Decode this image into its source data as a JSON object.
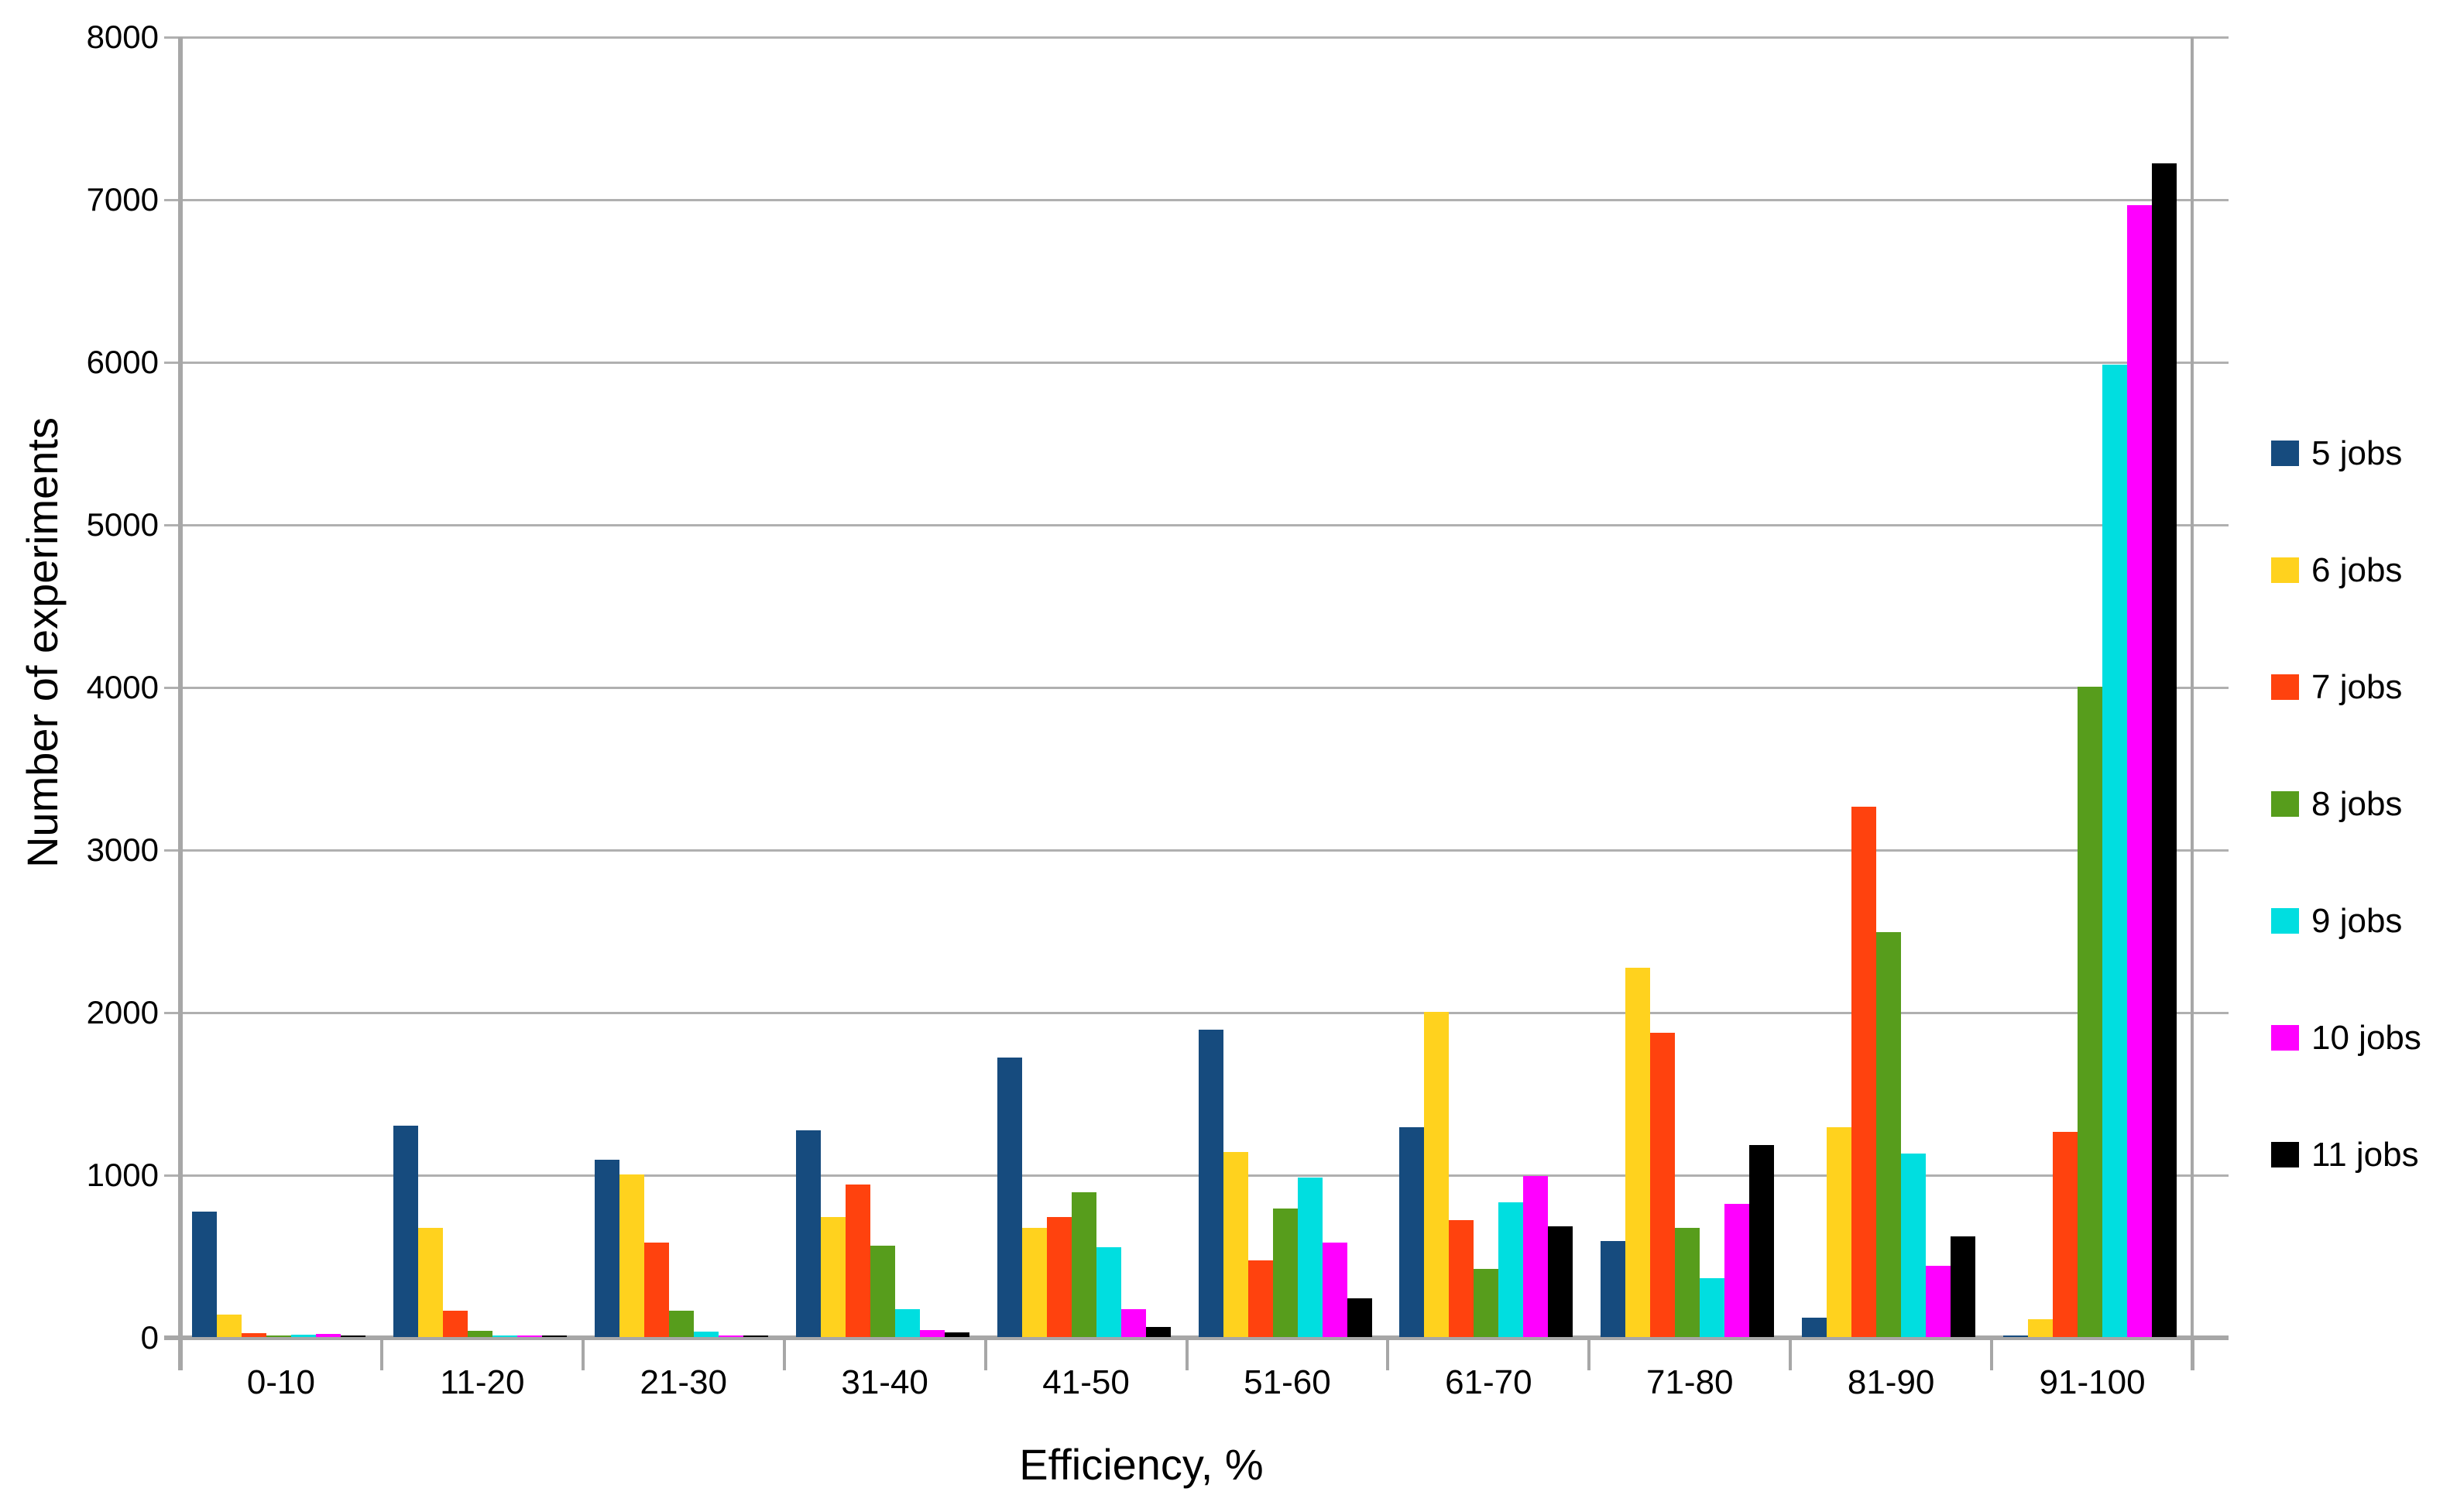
{
  "chart_data": {
    "type": "bar",
    "title": "",
    "xlabel": "Efficiency, %",
    "ylabel": "Number of experiments",
    "categories": [
      "0-10",
      "11-20",
      "21-30",
      "31-40",
      "41-50",
      "51-60",
      "61-70",
      "71-80",
      "81-90",
      "91-100"
    ],
    "yticks": [
      "0",
      "1000",
      "2000",
      "3000",
      "4000",
      "5000",
      "6000",
      "7000",
      "8000"
    ],
    "ylim": [
      0,
      8000
    ],
    "ytick_step": 1000,
    "grid": "horizontal",
    "legend_position": "right",
    "grid_color": "#b0b0b0",
    "axis_color": "#a7a7a7",
    "series": [
      {
        "name": "5 jobs",
        "color": "#164b7e",
        "values": [
          770,
          1300,
          1090,
          1270,
          1720,
          1890,
          1290,
          590,
          120,
          10
        ]
      },
      {
        "name": "6 jobs",
        "color": "#ffd21e",
        "values": [
          140,
          670,
          1000,
          740,
          670,
          1140,
          2000,
          2270,
          1290,
          110
        ]
      },
      {
        "name": "7 jobs",
        "color": "#ff420e",
        "values": [
          25,
          160,
          580,
          940,
          740,
          470,
          720,
          1870,
          3260,
          1260
        ]
      },
      {
        "name": "8 jobs",
        "color": "#579d1c",
        "values": [
          10,
          40,
          160,
          560,
          890,
          790,
          420,
          670,
          2490,
          4000
        ]
      },
      {
        "name": "9 jobs",
        "color": "#00dee0",
        "values": [
          15,
          10,
          35,
          170,
          550,
          980,
          830,
          360,
          1130,
          5980
        ]
      },
      {
        "name": "10 jobs",
        "color": "#ff00ff",
        "values": [
          20,
          8,
          5,
          45,
          170,
          580,
          990,
          820,
          440,
          6960
        ]
      },
      {
        "name": "11 jobs",
        "color": "#000000",
        "values": [
          5,
          5,
          5,
          30,
          60,
          240,
          680,
          1180,
          620,
          7220
        ]
      }
    ]
  }
}
